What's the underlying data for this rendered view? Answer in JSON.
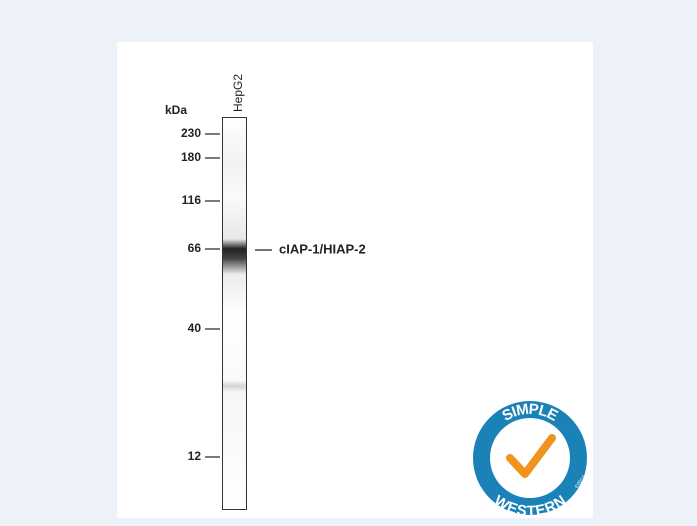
{
  "figure": {
    "unit_label": "kDa",
    "lane_label": "HepG2",
    "markers": [
      230,
      180,
      116,
      66,
      40,
      12
    ],
    "band_label": "cIAP-1/HIAP-2",
    "logo": {
      "top_text": "SIMPLE",
      "bottom_text": "WESTERN",
      "copyright": "©2014"
    }
  }
}
